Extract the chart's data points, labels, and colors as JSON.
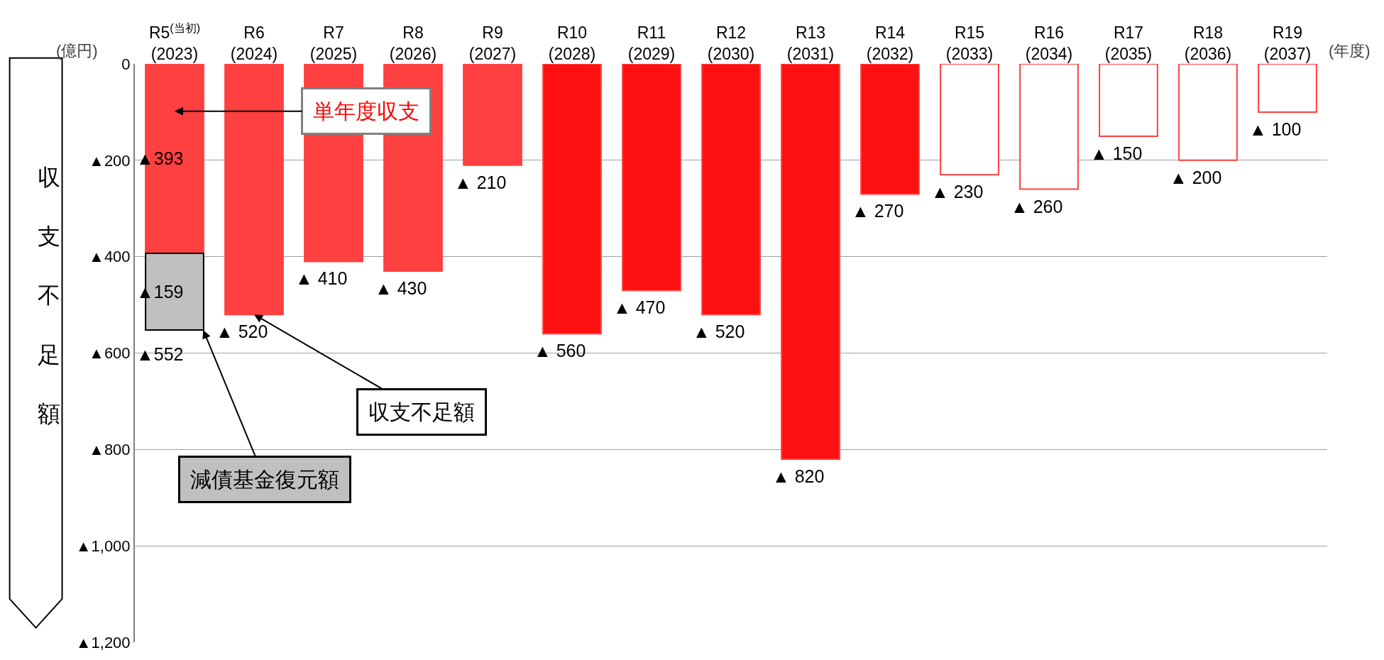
{
  "chart_data": {
    "type": "bar",
    "stacked": true,
    "ylabel": "収支不足額",
    "xlabel": "(年度)",
    "categories": [
      "R5$^{(当初)}$\n(2023)",
      "R6\n(2024)",
      "R7\n(2025)",
      "R8\n(2026)",
      "R9\n(2027)",
      "R10\n(2028)",
      "R11\n(2029)",
      "R12\n(2030)",
      "R13\n(2031)",
      "R14\n(2032)",
      "R15\n(2033)",
      "R16\n(2034)",
      "R17\n(2035)",
      "R18\n(2036)",
      "R19\n(2037)"
    ],
    "series": [
      {
        "name": "単年度収支",
        "color": "#ff4040",
        "colors": [
          "#ff4040",
          "#ff4040",
          "#ff4040",
          "#ff4040",
          "#ff4040",
          "#ff1010",
          "#ff1010",
          "#ff1010",
          "#ff1010",
          "#ff1010",
          "#ffffff",
          "#ffffff",
          "#ffffff",
          "#ffffff",
          "#ffffff"
        ],
        "values": [
          393,
          520,
          410,
          430,
          210,
          560,
          470,
          520,
          820,
          270,
          230,
          260,
          150,
          200,
          100
        ],
        "value_labels": [
          "▲393",
          "▲ 520",
          "▲ 410",
          "▲ 430",
          "▲ 210",
          "▲ 560",
          "▲ 470",
          "▲ 520",
          "▲ 820",
          "▲ 270",
          "▲ 230",
          "▲ 260",
          "▲ 150",
          "▲ 200",
          "▲ 100"
        ]
      },
      {
        "name": "減債基金復元額",
        "color": "#c0c0c0",
        "values": [
          159,
          null,
          null,
          null,
          null,
          null,
          null,
          null,
          null,
          null,
          null,
          null,
          null,
          null,
          null
        ],
        "value_labels": [
          "▲159",
          null,
          null,
          null,
          null,
          null,
          null,
          null,
          null,
          null,
          null,
          null,
          null,
          null,
          null
        ]
      }
    ],
    "totals": [
      "▲552",
      null,
      null,
      null,
      null,
      null,
      null,
      null,
      null,
      null,
      null,
      null,
      null,
      null,
      null
    ],
    "ylim": [
      1200,
      0
    ],
    "yticks": [
      0,
      {
        "value": 200,
        "label": "▲200"
      },
      {
        "value": 400,
        "label": "▲400"
      },
      {
        "value": 600,
        "label": "▲600"
      },
      {
        "value": 800,
        "label": "▲800"
      },
      {
        "value": 1000,
        "label": "▲1,000"
      },
      {
        "value": 1200,
        "label": "▲1,200"
      }
    ],
    "grid": "y",
    "legend": false,
    "annotations": [
      "(億円)",
      {
        "text": "収支不足額",
        "x": "R6\n(2024)",
        "y": 520
      }
    ]
  }
}
